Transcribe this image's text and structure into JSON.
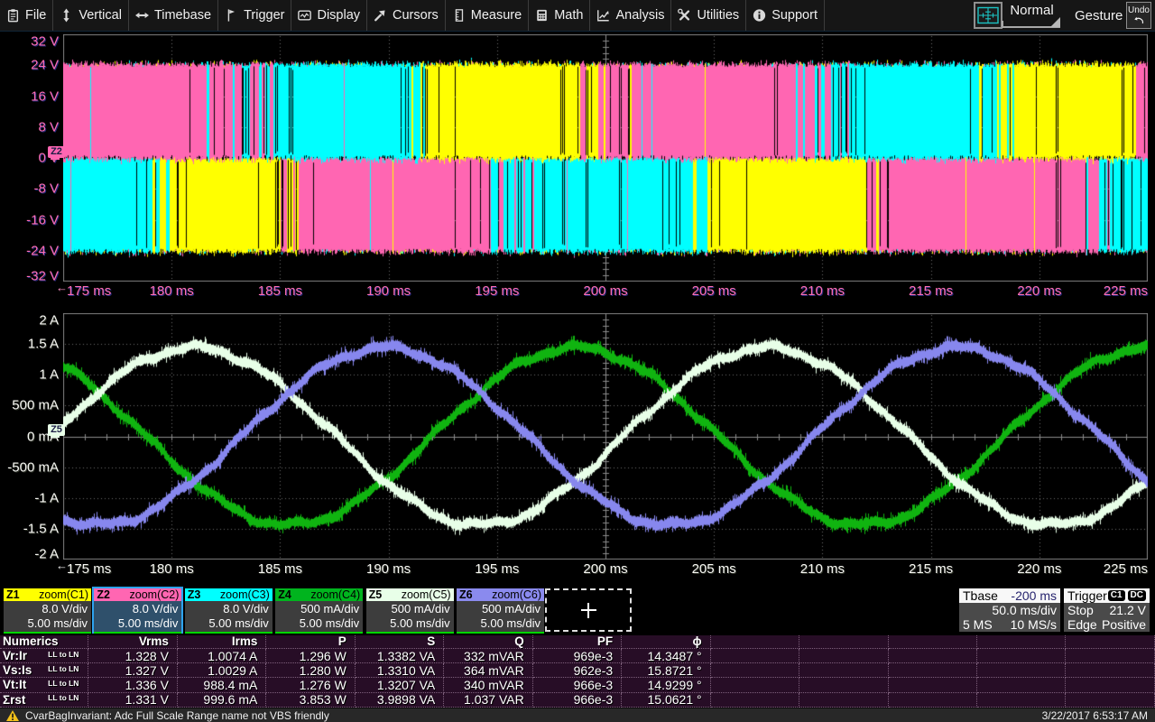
{
  "menu": {
    "items": [
      {
        "label": "File",
        "icon": "clipboard-icon"
      },
      {
        "label": "Vertical",
        "icon": "vertical-arrows-icon"
      },
      {
        "label": "Timebase",
        "icon": "horizontal-arrows-icon"
      },
      {
        "label": "Trigger",
        "icon": "flag-icon"
      },
      {
        "label": "Display",
        "icon": "monitor-icon"
      },
      {
        "label": "Cursors",
        "icon": "cursor-arrow-icon"
      },
      {
        "label": "Measure",
        "icon": "ruler-icon"
      },
      {
        "label": "Math",
        "icon": "calculator-icon"
      },
      {
        "label": "Analysis",
        "icon": "chart-icon"
      },
      {
        "label": "Utilities",
        "icon": "tools-icon"
      },
      {
        "label": "Support",
        "icon": "info-icon"
      }
    ],
    "grid_mode": {
      "label": "Normal",
      "icon": "single-grid-icon"
    },
    "gesture_label": "Gesture",
    "undo_label": "Undo"
  },
  "chart_data": [
    {
      "type": "oscilloscope-pwm-fill",
      "title": "Zoom traces Z1/Z2/Z3 - PWM line-to-line voltages",
      "x": {
        "min_ms": 175,
        "max_ms": 225,
        "divisions": 10,
        "tick_labels": [
          "175 ms",
          "180 ms",
          "185 ms",
          "190 ms",
          "195 ms",
          "200 ms",
          "205 ms",
          "210 ms",
          "215 ms",
          "220 ms",
          "225 ms"
        ]
      },
      "y": {
        "min": -32,
        "max": 32,
        "divisions": 8,
        "per_div": "8 V",
        "tick_labels": [
          "32 V",
          "24 V",
          "16 V",
          "8 V",
          "0 V",
          "-8 V",
          "-16 V",
          "-24 V",
          "-32 V"
        ]
      },
      "rail_volts": 24,
      "traces": [
        {
          "name": "Z1",
          "color": "#ffff00"
        },
        {
          "name": "Z2",
          "color": "#ff66b2"
        },
        {
          "name": "Z3",
          "color": "#00ffff"
        }
      ],
      "marker": {
        "label": "Z2",
        "level": 0,
        "color": "#ff66b2"
      },
      "axis_label_color": "#ff6eb4",
      "top_half": {
        "initial": "Z2",
        "events": [
          {
            "t": 183.2,
            "to": "Z3",
            "w": 2.6
          },
          {
            "t": 191.6,
            "to": "Z1",
            "w": 1.6
          },
          {
            "t": 199.4,
            "to": "Z2",
            "w": 2.2
          },
          {
            "t": 209.8,
            "to": "Z3",
            "w": 2.2
          },
          {
            "t": 218.3,
            "to": "Z1",
            "w": 1.7
          },
          {
            "t": 224.4,
            "to": "Z2",
            "w": 1.2
          }
        ]
      },
      "bottom_half": {
        "initial": "Z3",
        "events": [
          {
            "t": 179.2,
            "to": "Z1",
            "w": 1.8
          },
          {
            "t": 185.5,
            "to": "Z2",
            "w": 1.6
          },
          {
            "t": 195.2,
            "to": "Z3",
            "w": 2.4
          },
          {
            "t": 204.6,
            "to": "Z1",
            "w": 2.0
          },
          {
            "t": 212.2,
            "to": "Z2",
            "w": 1.2
          },
          {
            "t": 222.9,
            "to": "Z3",
            "w": 2.2
          }
        ]
      }
    },
    {
      "type": "line",
      "title": "Zoom traces Z4/Z5/Z6 - three-phase currents",
      "x": {
        "min_ms": 175,
        "max_ms": 225,
        "divisions": 10,
        "tick_labels": [
          "175 ms",
          "180 ms",
          "185 ms",
          "190 ms",
          "195 ms",
          "200 ms",
          "205 ms",
          "210 ms",
          "215 ms",
          "220 ms",
          "225 ms"
        ]
      },
      "y": {
        "min": -2,
        "max": 2,
        "divisions": 8,
        "per_div": "500 mA",
        "tick_labels": [
          "2 A",
          "1.5 A",
          "1 A",
          "500 mA",
          "0 mA",
          "-500 mA",
          "-1 A",
          "-1.5 A",
          "-2 A"
        ]
      },
      "marker": {
        "label": "Z5",
        "level": 0,
        "color": "#e8ffe8"
      },
      "axis_label_color": "#f8f8f4",
      "period_ms": 26.4,
      "amplitude_A": 1.44,
      "series": [
        {
          "name": "Z4",
          "color": "#10b410",
          "peak_ms": 198.6
        },
        {
          "name": "Z5",
          "color": "#e8ffe8",
          "peak_ms": 181.0
        },
        {
          "name": "Z6",
          "color": "#8787ee",
          "peak_ms": 189.8
        }
      ]
    }
  ],
  "descriptors": [
    {
      "id": "Z1",
      "source": "zoom(C1)",
      "color": "#ffff00",
      "line1": "8.0 V/div",
      "line2": "5.00 ms/div",
      "selected": false
    },
    {
      "id": "Z2",
      "source": "zoom(C2)",
      "color": "#ff66b2",
      "line1": "8.0 V/div",
      "line2": "5.00 ms/div",
      "selected": true
    },
    {
      "id": "Z3",
      "source": "zoom(C3)",
      "color": "#00ffff",
      "line1": "8.0 V/div",
      "line2": "5.00 ms/div",
      "selected": false
    },
    {
      "id": "Z4",
      "source": "zoom(C4)",
      "color": "#00b41e",
      "line1": "500 mA/div",
      "line2": "5.00 ms/div",
      "selected": false
    },
    {
      "id": "Z5",
      "source": "zoom(C5)",
      "color": "#e8ffe8",
      "line1": "500 mA/div",
      "line2": "5.00 ms/div",
      "selected": false
    },
    {
      "id": "Z6",
      "source": "zoom(C6)",
      "color": "#8a8aee",
      "line1": "500 mA/div",
      "line2": "5.00 ms/div",
      "selected": false
    }
  ],
  "add_trace_label": "+",
  "timebase": {
    "title": "Tbase",
    "offset": "-200 ms",
    "scale": "50.0 ms/div",
    "samples": "5 MS",
    "rate": "10 MS/s"
  },
  "trigger": {
    "title": "Trigger",
    "badges": [
      "C1",
      "DC"
    ],
    "mode": "Stop",
    "level": "21.2 V",
    "kind": "Edge",
    "slope": "Positive"
  },
  "numerics": {
    "headers": [
      "Numerics",
      "Vrms",
      "Irms",
      "P",
      "S",
      "Q",
      "PF",
      "ϕ"
    ],
    "total_columns": 13,
    "rows": [
      {
        "name": "Vr:Ir",
        "sub": "LL to LN",
        "values": [
          "1.328 V",
          "1.0074 A",
          "1.296 W",
          "1.3382 VA",
          "332 mVAR",
          "969e-3",
          "14.3487 °"
        ]
      },
      {
        "name": "Vs:Is",
        "sub": "LL to LN",
        "values": [
          "1.327 V",
          "1.0029 A",
          "1.280 W",
          "1.3310 VA",
          "364 mVAR",
          "962e-3",
          "15.8721 °"
        ]
      },
      {
        "name": "Vt:It",
        "sub": "LL to LN",
        "values": [
          "1.336 V",
          "988.4 mA",
          "1.276 W",
          "1.3207 VA",
          "340 mVAR",
          "966e-3",
          "14.9299 °"
        ]
      },
      {
        "name": "Σrst",
        "sub": "LL to LN",
        "values": [
          "1.331 V",
          "999.6 mA",
          "3.853 W",
          "3.9898 VA",
          "1.037 VAR",
          "966e-3",
          "15.0621 °"
        ]
      }
    ]
  },
  "statusbar": {
    "icon": "warning-icon",
    "message": "CvarBagInvariant: Adc Full Scale Range name not VBS friendly",
    "datetime": "3/22/2017 6:53:17 AM"
  }
}
